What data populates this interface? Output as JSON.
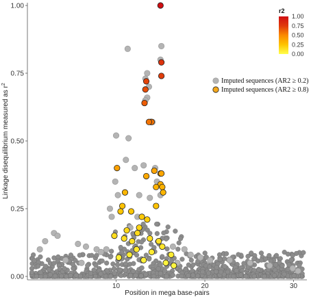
{
  "chart_data": {
    "type": "scatter",
    "xlabel": "Position in mega base-pairs",
    "ylabel_main": "Linkage disequilibrium measured as r",
    "ylabel_sup": "2",
    "x_ticks": [
      "10",
      "20",
      "30"
    ],
    "y_ticks": [
      "0.00",
      "0.25",
      "0.50",
      "0.75",
      "1.00"
    ],
    "xlim": [
      0,
      31.5
    ],
    "ylim": [
      0,
      1.0
    ],
    "grid": false,
    "legend": {
      "placement": "right",
      "entries": [
        {
          "label": "Imputed sequences (AR2 ≥ 0.2)",
          "color": "#b4b4b4"
        },
        {
          "label": "Imputed sequences (AR2 ≥ 0.8)",
          "color": "#f4a81c"
        }
      ]
    },
    "colorbar": {
      "title": "r2",
      "ticks": [
        "1.00",
        "0.75",
        "0.50",
        "0.25",
        "0.00"
      ],
      "range": [
        0,
        1
      ],
      "colors": [
        "#ffff4c",
        "#fec400",
        "#fb8a00",
        "#e03a0b",
        "#d00e12"
      ]
    },
    "series": [
      {
        "name": "Imputed sequences (AR2 ≥ 0.2)",
        "points": [
          [
            11.3,
            0.84
          ],
          [
            13.5,
            0.75
          ],
          [
            13.3,
            0.73
          ],
          [
            13.7,
            0.7
          ],
          [
            13.5,
            0.66
          ],
          [
            13.3,
            0.65
          ],
          [
            15.1,
            0.85
          ],
          [
            15.0,
            0.8
          ],
          [
            14.1,
            0.57
          ],
          [
            11.4,
            0.51
          ],
          [
            10.0,
            0.52
          ],
          [
            11.1,
            0.43
          ],
          [
            12.1,
            0.4
          ],
          [
            13.1,
            0.41
          ],
          [
            14.4,
            0.4
          ],
          [
            14.6,
            0.35
          ],
          [
            15.0,
            0.3
          ],
          [
            9.9,
            0.35
          ],
          [
            10.2,
            0.3
          ],
          [
            9.3,
            0.25
          ],
          [
            9.5,
            0.22
          ],
          [
            12.6,
            0.3
          ],
          [
            13.8,
            0.29
          ],
          [
            12.4,
            0.22
          ],
          [
            11.6,
            0.18
          ],
          [
            3.0,
            0.16
          ],
          [
            3.4,
            0.15
          ],
          [
            2.0,
            0.13
          ],
          [
            1.4,
            0.1
          ],
          [
            5.7,
            0.12
          ],
          [
            6.6,
            0.11
          ],
          [
            7.8,
            0.1
          ],
          [
            8.3,
            0.09
          ],
          [
            8.9,
            0.1
          ],
          [
            16.4,
            0.11
          ],
          [
            17.7,
            0.1
          ],
          [
            18.4,
            0.08
          ],
          [
            20.6,
            0.06
          ],
          [
            22.8,
            0.06
          ],
          [
            25.1,
            0.05
          ],
          [
            27.3,
            0.04
          ],
          [
            29.9,
            0.03
          ],
          [
            30.5,
            0.02
          ],
          [
            19.5,
            0.07
          ],
          [
            16.9,
            0.05
          ],
          [
            4.3,
            0.06
          ],
          [
            6.1,
            0.05
          ]
        ]
      },
      {
        "name": "Imputed sequences (AR2 ≥ 0.8)",
        "points": [
          [
            15.0,
            1.0
          ],
          [
            15.1,
            0.79
          ],
          [
            15.1,
            0.74
          ],
          [
            13.4,
            0.72
          ],
          [
            13.3,
            0.69
          ],
          [
            13.2,
            0.64
          ],
          [
            13.9,
            0.57
          ],
          [
            14.0,
            0.57
          ],
          [
            13.7,
            0.57
          ],
          [
            15.0,
            0.38
          ],
          [
            15.1,
            0.38
          ],
          [
            14.3,
            0.39
          ],
          [
            10.1,
            0.4
          ],
          [
            13.4,
            0.37
          ],
          [
            15.0,
            0.34
          ],
          [
            15.2,
            0.33
          ],
          [
            14.5,
            0.33
          ],
          [
            15.3,
            0.31
          ],
          [
            14.5,
            0.26
          ],
          [
            11.0,
            0.31
          ],
          [
            10.7,
            0.26
          ],
          [
            10.5,
            0.24
          ],
          [
            11.7,
            0.24
          ],
          [
            12.9,
            0.22
          ],
          [
            13.5,
            0.21
          ],
          [
            12.6,
            0.18
          ],
          [
            11.2,
            0.17
          ],
          [
            12.4,
            0.16
          ],
          [
            13.8,
            0.14
          ],
          [
            14.8,
            0.13
          ],
          [
            15.2,
            0.11
          ],
          [
            11.8,
            0.13
          ],
          [
            10.9,
            0.14
          ],
          [
            9.8,
            0.15
          ],
          [
            16.2,
            0.08
          ],
          [
            14.0,
            0.09
          ],
          [
            12.3,
            0.1
          ],
          [
            11.5,
            0.08
          ],
          [
            10.3,
            0.07
          ],
          [
            13.1,
            0.06
          ],
          [
            15.6,
            0.05
          ],
          [
            16.5,
            0.04
          ]
        ]
      }
    ]
  }
}
